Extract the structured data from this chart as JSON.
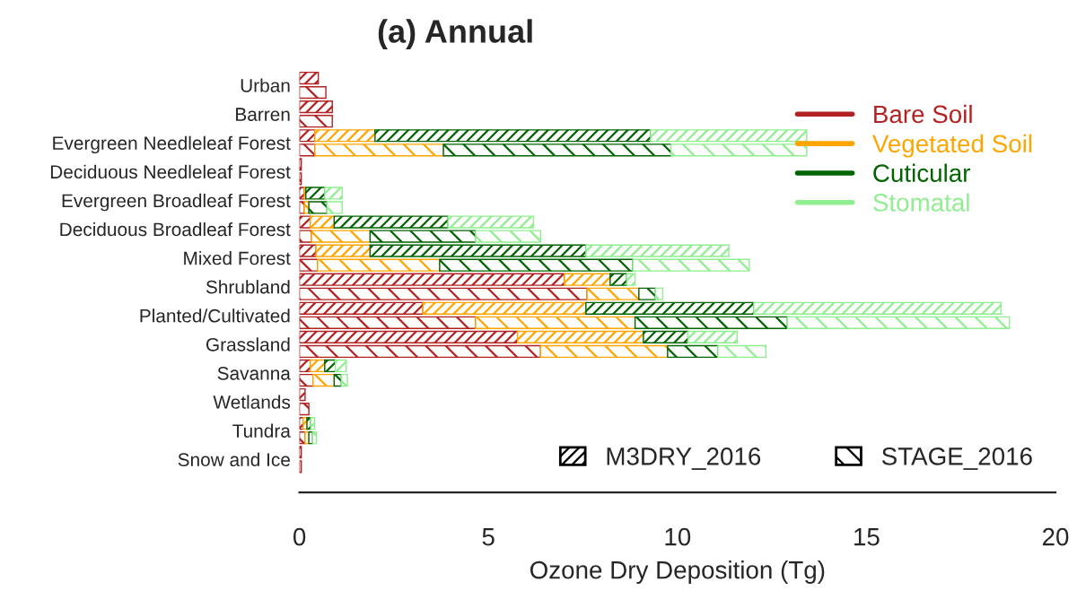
{
  "chart_data": {
    "type": "bar",
    "orientation": "horizontal",
    "stacked": true,
    "title": "(a) Annual",
    "xlabel": "Ozone Dry Deposition (Tg)",
    "categories": [
      "Urban",
      null,
      "Barren",
      null,
      "Evergreen Needleleaf Forest",
      null,
      "Deciduous Needleleaf Forest",
      null,
      "Evergreen Broadleaf Forest",
      null,
      "Deciduous Broadleaf Forest",
      null,
      "Mixed Forest",
      null,
      "Shrubland",
      null,
      "Planted/Cultivated",
      null,
      "Grassland",
      null,
      "Savanna",
      null,
      "Wetlands",
      null,
      "Tundra",
      null,
      "Snow and Ice",
      null
    ],
    "series": [
      {
        "name": "Bare Soil",
        "color": "#b22222",
        "values": [
          0.5,
          0.7,
          0.87,
          0.87,
          0.41,
          0.41,
          0.05,
          0.05,
          0.13,
          0.13,
          0.29,
          0.32,
          0.44,
          0.48,
          7.01,
          7.61,
          3.27,
          4.66,
          5.77,
          6.38,
          0.29,
          0.36,
          0.15,
          0.25,
          0.1,
          0.15,
          0.05,
          0.05
        ]
      },
      {
        "name": "Vegetated Soil",
        "color": "#ffa500",
        "values": [
          null,
          null,
          null,
          null,
          1.59,
          3.4,
          null,
          null,
          0.04,
          0.12,
          0.63,
          1.55,
          1.43,
          3.23,
          1.21,
          1.37,
          4.31,
          4.22,
          3.33,
          3.36,
          0.38,
          0.56,
          null,
          null,
          0.1,
          0.1,
          null,
          null
        ]
      },
      {
        "name": "Cuticular",
        "color": "#006400",
        "values": [
          null,
          null,
          null,
          null,
          7.29,
          6.02,
          null,
          null,
          0.5,
          0.48,
          3.01,
          2.79,
          5.71,
          5.11,
          0.44,
          0.44,
          4.44,
          4.03,
          1.18,
          1.33,
          0.28,
          0.19,
          null,
          null,
          0.1,
          0.1,
          null,
          null
        ]
      },
      {
        "name": "Stomatal",
        "color": "#90ee90",
        "values": [
          null,
          null,
          null,
          null,
          4.13,
          3.59,
          null,
          null,
          0.46,
          0.4,
          2.26,
          1.72,
          3.78,
          3.08,
          0.22,
          0.19,
          6.54,
          5.87,
          1.3,
          1.27,
          0.29,
          0.16,
          null,
          null,
          0.1,
          0.1,
          null,
          null
        ]
      }
    ],
    "annotations": [
      "M3DRY_2016",
      "STAGE_2016"
    ],
    "xlim": [
      0,
      20
    ],
    "xticks": [
      0,
      5,
      10,
      15,
      20
    ],
    "legend": "top right"
  }
}
